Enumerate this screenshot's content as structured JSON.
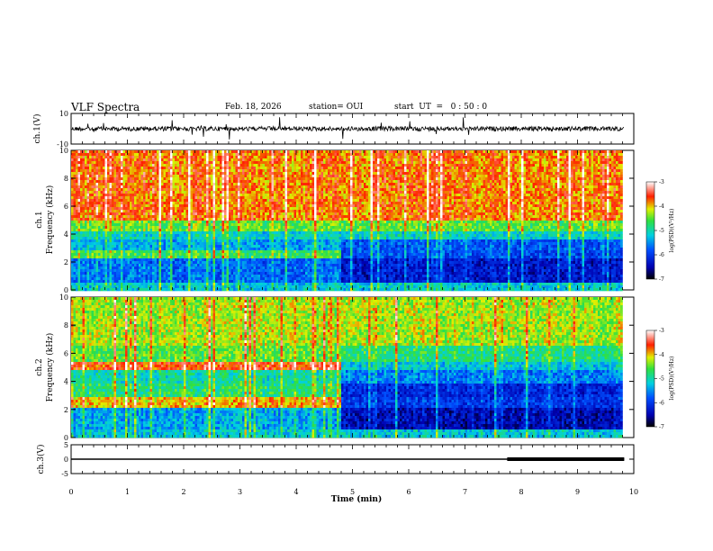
{
  "header": {
    "title": "VLF Spectra",
    "date": "Feb. 18, 2026",
    "station": "station= OUI",
    "start_ut": "start  UT  =   0 : 50 : 0"
  },
  "chart_data": [
    {
      "type": "line",
      "panel": "ch1-waveform",
      "ylabel": "ch.1(V)",
      "ylim": [
        -10,
        10
      ],
      "yticks": [
        10,
        -10
      ],
      "xlim": [
        0,
        10
      ],
      "description_series": [
        {
          "baseline": 0,
          "noise_amplitude": 2.5,
          "x_end": 9.83
        }
      ]
    },
    {
      "type": "heatmap",
      "panel": "ch1-spectrogram",
      "ylabel": "ch.1\nFrequency  (kHz)",
      "ylim": [
        0,
        10
      ],
      "yticks": [
        0,
        2,
        4,
        6,
        8,
        10
      ],
      "xlim": [
        0,
        10
      ],
      "x_end": 9.83,
      "colorbar": {
        "label": "log(PSD)(V²/Hz)",
        "range": [
          -7,
          -3
        ],
        "ticks": [
          -3,
          -4,
          -5,
          -6,
          -7
        ]
      }
    },
    {
      "type": "heatmap",
      "panel": "ch2-spectrogram",
      "ylabel": "ch.2\nFrequency  (kHz)",
      "ylim": [
        0,
        10
      ],
      "yticks": [
        0,
        2,
        4,
        6,
        8,
        10
      ],
      "xlim": [
        0,
        10
      ],
      "x_end": 9.83,
      "colorbar": {
        "label": "log(PSD)(V²/Hz)",
        "range": [
          -7,
          -3
        ],
        "ticks": [
          -3,
          -4,
          -5,
          -6,
          -7
        ]
      }
    },
    {
      "type": "line",
      "panel": "ch3-trace",
      "ylabel": "ch.3(V)",
      "ylim": [
        -5,
        5
      ],
      "yticks": [
        5,
        0,
        -5
      ],
      "xlim": [
        0,
        10
      ],
      "xlabel": "Time  (min)",
      "xticks": [
        0,
        1,
        2,
        3,
        4,
        5,
        6,
        7,
        8,
        9,
        10
      ],
      "series": [
        {
          "x": [
            0,
            9.83
          ],
          "y": [
            0,
            0
          ],
          "thin": true
        },
        {
          "x": [
            7.75,
            9.83
          ],
          "y": [
            0,
            0
          ],
          "thick": true
        }
      ]
    }
  ]
}
